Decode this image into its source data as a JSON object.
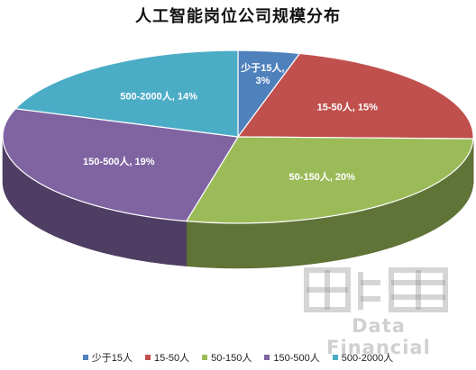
{
  "chart_data": {
    "type": "pie",
    "title": "人工智能岗位公司规模分布",
    "categories": [
      "少于15人",
      "15-50人",
      "50-150人",
      "150-500人",
      "500-2000人"
    ],
    "values": [
      3,
      15,
      20,
      19,
      14
    ],
    "series": [
      {
        "name": "少于15人",
        "value": 3,
        "value_label": "3%",
        "color": "#4f81bd"
      },
      {
        "name": "15-50人",
        "value": 15,
        "value_label": "15%",
        "color": "#c0504d"
      },
      {
        "name": "50-150人",
        "value": 20,
        "value_label": "20%",
        "color": "#9bbb59"
      },
      {
        "name": "150-500人",
        "value": 19,
        "value_label": "19%",
        "color": "#8064a2"
      },
      {
        "name": "500-2000人",
        "value": 14,
        "value_label": "14%",
        "color": "#4bacc6"
      }
    ],
    "legend_position": "bottom",
    "three_d": true
  },
  "watermark": {
    "text": "Data Financial"
  }
}
